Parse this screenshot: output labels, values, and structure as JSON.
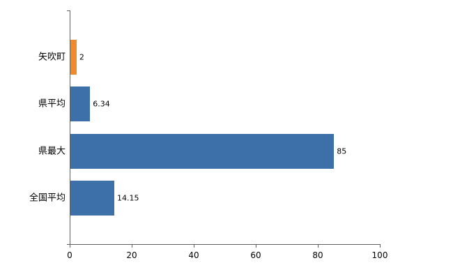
{
  "chart_data": {
    "type": "bar",
    "orientation": "horizontal",
    "title": "",
    "xlabel": "",
    "ylabel": "",
    "categories": [
      "矢吹町",
      "県平均",
      "県最大",
      "全国平均"
    ],
    "values": [
      2,
      6.34,
      85,
      14.15
    ],
    "value_labels": [
      "2",
      "6.34",
      "85",
      "14.15"
    ],
    "bar_colors": [
      "#ef8b2e",
      "#3d6fa8",
      "#3d6fa8",
      "#3d6fa8"
    ],
    "xlim": [
      0,
      100
    ],
    "x_ticks": [
      0,
      20,
      40,
      60,
      80,
      100
    ],
    "grid": false,
    "legend_position": "none"
  },
  "colors": {
    "highlight_bar": "#ef8b2e",
    "default_bar": "#3d6fa8",
    "axis": "#5f5f5f",
    "background": "#ffffff"
  }
}
